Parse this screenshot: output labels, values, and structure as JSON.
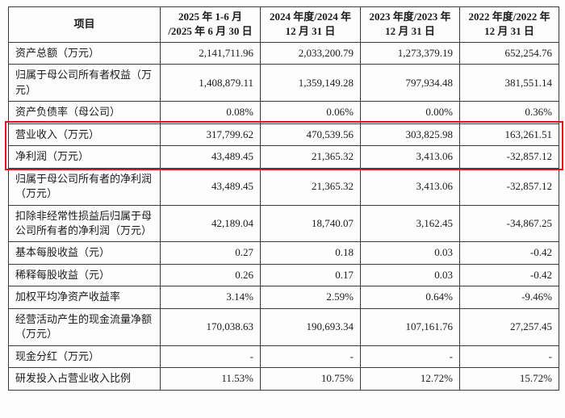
{
  "highlight_color": "#e01414",
  "table": {
    "headers": [
      "项目",
      "2025 年 1-6 月\n/2025 年 6 月 30 日",
      "2024 年度/2024 年\n12 月 31 日",
      "2023 年度/2023 年\n12 月 31 日",
      "2022 年度/2022 年\n12 月 31 日"
    ],
    "rows": [
      {
        "label": "资产总额（万元）",
        "values": [
          "2,141,711.96",
          "2,033,200.79",
          "1,273,379.19",
          "652,254.76"
        ],
        "highlight": false
      },
      {
        "label": "归属于母公司所有者权益（万元）",
        "values": [
          "1,408,879.11",
          "1,359,149.28",
          "797,934.48",
          "381,551.14"
        ],
        "highlight": false
      },
      {
        "label": "资产负债率（母公司）",
        "values": [
          "0.08%",
          "0.06%",
          "0.00%",
          "0.36%"
        ],
        "highlight": false
      },
      {
        "label": "营业收入（万元）",
        "values": [
          "317,799.62",
          "470,539.56",
          "303,825.98",
          "163,261.51"
        ],
        "highlight": true
      },
      {
        "label": "净利润（万元）",
        "values": [
          "43,489.45",
          "21,365.32",
          "3,413.06",
          "-32,857.12"
        ],
        "highlight": true
      },
      {
        "label": "归属于母公司所有者的净利润（万元）",
        "values": [
          "43,489.45",
          "21,365.32",
          "3,413.06",
          "-32,857.12"
        ],
        "highlight": false
      },
      {
        "label": "扣除非经常性损益后归属于母公司所有者的净利润（万元）",
        "values": [
          "42,189.04",
          "18,740.07",
          "3,162.45",
          "-34,867.25"
        ],
        "highlight": false
      },
      {
        "label": "基本每股收益（元）",
        "values": [
          "0.27",
          "0.18",
          "0.03",
          "-0.42"
        ],
        "highlight": false
      },
      {
        "label": "稀释每股收益（元）",
        "values": [
          "0.26",
          "0.17",
          "0.03",
          "-0.42"
        ],
        "highlight": false
      },
      {
        "label": "加权平均净资产收益率",
        "values": [
          "3.14%",
          "2.59%",
          "0.64%",
          "-9.46%"
        ],
        "highlight": false
      },
      {
        "label": "经营活动产生的现金流量净额（万元）",
        "values": [
          "170,038.63",
          "190,693.34",
          "107,161.76",
          "27,257.45"
        ],
        "highlight": false
      },
      {
        "label": "现金分红（万元）",
        "values": [
          "-",
          "-",
          "-",
          "-"
        ],
        "highlight": false
      },
      {
        "label": "研发投入占营业收入比例",
        "values": [
          "11.53%",
          "10.75%",
          "12.72%",
          "15.72%"
        ],
        "highlight": false
      }
    ]
  }
}
